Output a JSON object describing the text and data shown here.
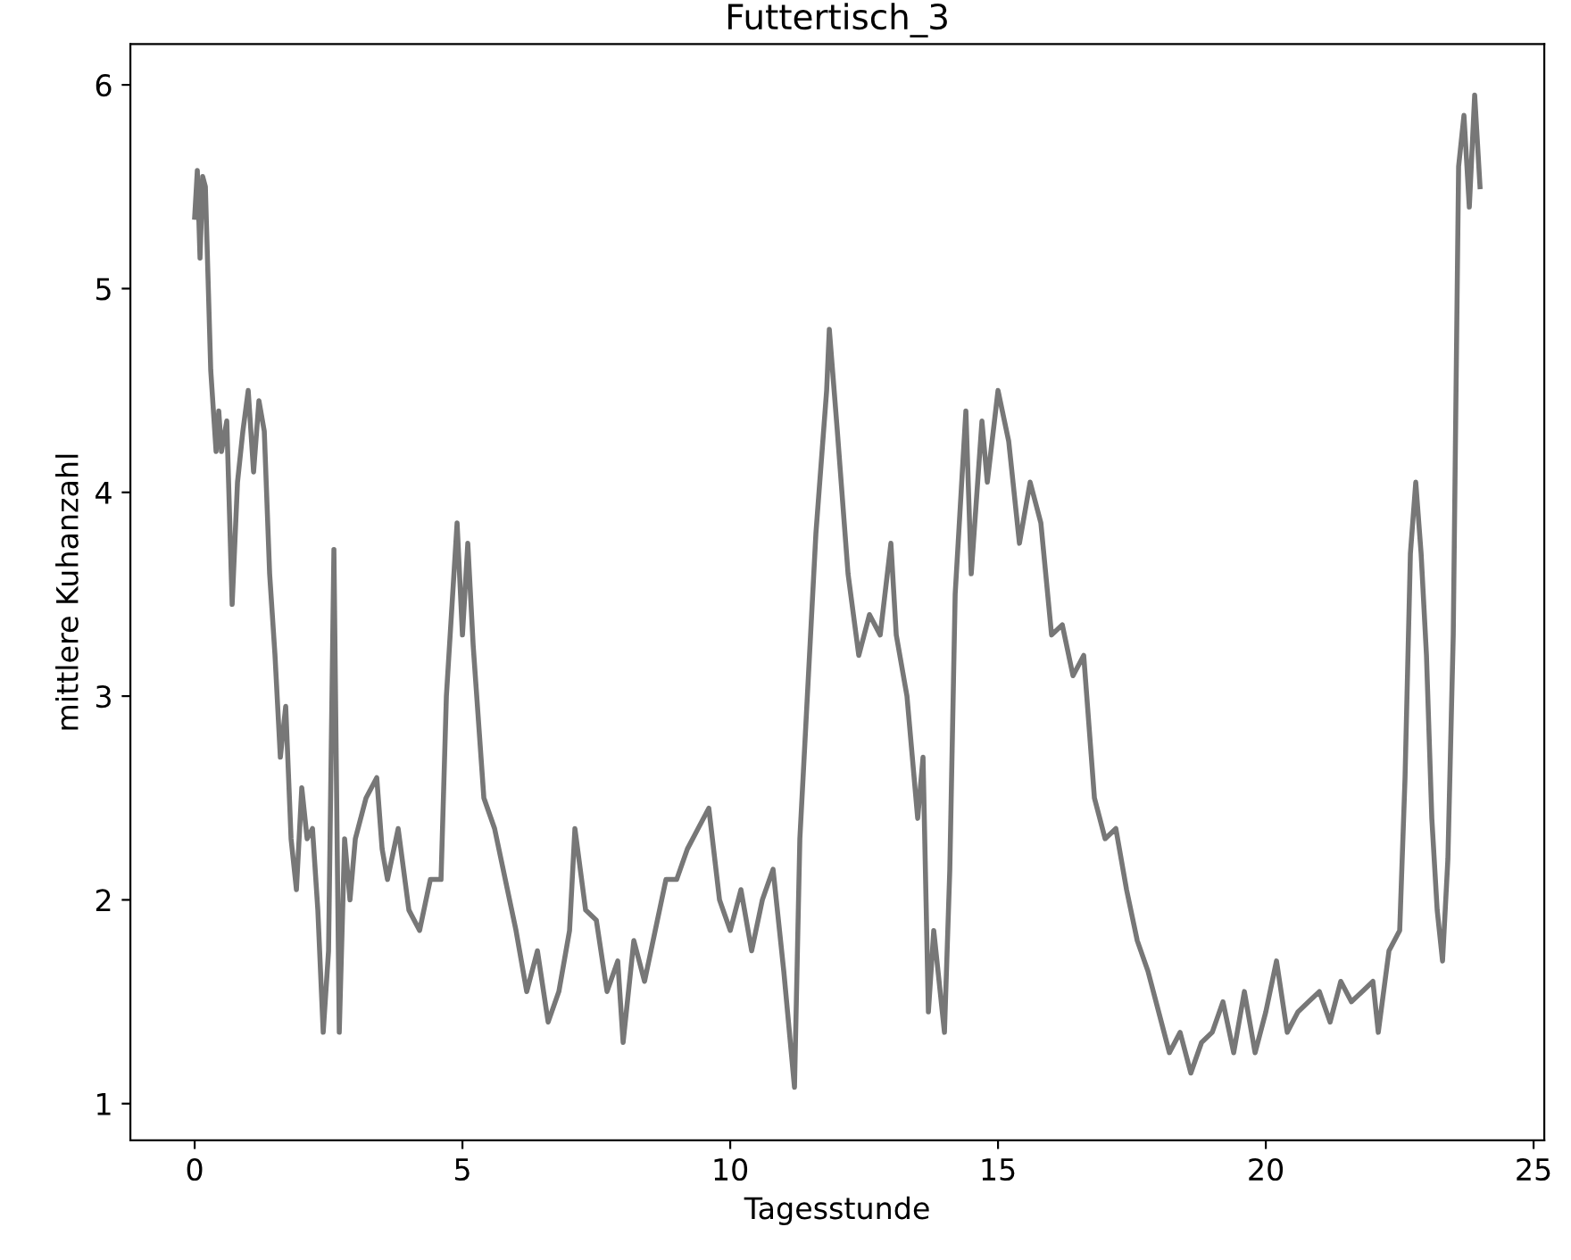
{
  "chart_data": {
    "type": "line",
    "title": "Futtertisch_3",
    "xlabel": "Tagesstunde",
    "ylabel": "mittlere Kuhanzahl",
    "xlim": [
      -1.2,
      25.2
    ],
    "ylim": [
      0.82,
      6.2
    ],
    "xticks": [
      0,
      5,
      10,
      15,
      20,
      25
    ],
    "yticks": [
      1,
      2,
      3,
      4,
      5,
      6
    ],
    "grid": false,
    "legend": false,
    "marker": "none",
    "line_style": "solid",
    "series": [
      {
        "color": "#777777",
        "x": [
          0.0,
          0.05,
          0.1,
          0.15,
          0.2,
          0.3,
          0.4,
          0.45,
          0.5,
          0.6,
          0.7,
          0.8,
          0.9,
          1.0,
          1.1,
          1.2,
          1.3,
          1.4,
          1.5,
          1.6,
          1.7,
          1.8,
          1.9,
          2.0,
          2.1,
          2.2,
          2.3,
          2.4,
          2.5,
          2.6,
          2.7,
          2.8,
          2.9,
          3.0,
          3.2,
          3.4,
          3.5,
          3.6,
          3.8,
          4.0,
          4.2,
          4.4,
          4.6,
          4.7,
          4.9,
          5.0,
          5.1,
          5.2,
          5.4,
          5.6,
          5.8,
          6.0,
          6.2,
          6.4,
          6.6,
          6.8,
          7.0,
          7.1,
          7.3,
          7.5,
          7.7,
          7.9,
          8.0,
          8.2,
          8.4,
          8.6,
          8.8,
          9.0,
          9.2,
          9.4,
          9.6,
          9.8,
          10.0,
          10.2,
          10.4,
          10.6,
          10.8,
          11.0,
          11.2,
          11.3,
          11.5,
          11.6,
          11.8,
          11.85,
          12.0,
          12.2,
          12.4,
          12.6,
          12.8,
          13.0,
          13.1,
          13.3,
          13.5,
          13.6,
          13.7,
          13.8,
          14.0,
          14.1,
          14.2,
          14.4,
          14.5,
          14.7,
          14.8,
          15.0,
          15.2,
          15.4,
          15.6,
          15.8,
          16.0,
          16.2,
          16.4,
          16.6,
          16.8,
          17.0,
          17.2,
          17.4,
          17.6,
          17.8,
          18.0,
          18.2,
          18.4,
          18.6,
          18.8,
          19.0,
          19.2,
          19.4,
          19.6,
          19.8,
          20.0,
          20.2,
          20.4,
          20.6,
          20.8,
          21.0,
          21.2,
          21.4,
          21.6,
          21.8,
          22.0,
          22.1,
          22.3,
          22.5,
          22.6,
          22.7,
          22.8,
          22.9,
          23.0,
          23.1,
          23.2,
          23.3,
          23.4,
          23.5,
          23.6,
          23.7,
          23.8,
          23.9,
          24.0
        ],
        "values": [
          5.35,
          5.58,
          5.15,
          5.55,
          5.5,
          4.6,
          4.2,
          4.4,
          4.2,
          4.35,
          3.45,
          4.05,
          4.3,
          4.5,
          4.1,
          4.45,
          4.3,
          3.6,
          3.2,
          2.7,
          2.95,
          2.3,
          2.05,
          2.55,
          2.3,
          2.35,
          1.95,
          1.35,
          1.75,
          3.72,
          1.35,
          2.3,
          2.0,
          2.3,
          2.5,
          2.6,
          2.25,
          2.1,
          2.35,
          1.95,
          1.85,
          2.1,
          2.1,
          3.0,
          3.85,
          3.3,
          3.75,
          3.25,
          2.5,
          2.35,
          2.1,
          1.85,
          1.55,
          1.75,
          1.4,
          1.55,
          1.85,
          2.35,
          1.95,
          1.9,
          1.55,
          1.7,
          1.3,
          1.8,
          1.6,
          1.85,
          2.1,
          2.1,
          2.25,
          2.35,
          2.45,
          2.0,
          1.85,
          2.05,
          1.75,
          2.0,
          2.15,
          1.65,
          1.08,
          2.3,
          3.3,
          3.8,
          4.5,
          4.8,
          4.3,
          3.6,
          3.2,
          3.4,
          3.3,
          3.75,
          3.3,
          3.0,
          2.4,
          2.7,
          1.45,
          1.85,
          1.35,
          2.15,
          3.5,
          4.4,
          3.6,
          4.35,
          4.05,
          4.5,
          4.25,
          3.75,
          4.05,
          3.85,
          3.3,
          3.35,
          3.1,
          3.2,
          2.5,
          2.3,
          2.35,
          2.05,
          1.8,
          1.65,
          1.45,
          1.25,
          1.35,
          1.15,
          1.3,
          1.35,
          1.5,
          1.25,
          1.55,
          1.25,
          1.45,
          1.7,
          1.35,
          1.45,
          1.5,
          1.55,
          1.4,
          1.6,
          1.5,
          1.55,
          1.6,
          1.35,
          1.75,
          1.85,
          2.6,
          3.7,
          4.05,
          3.7,
          3.2,
          2.4,
          1.95,
          1.7,
          2.2,
          3.3,
          5.6,
          5.85,
          5.4,
          5.95,
          5.5
        ]
      }
    ]
  }
}
